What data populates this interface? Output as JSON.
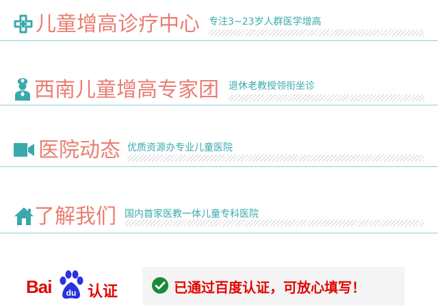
{
  "sections": [
    {
      "title": "儿童增高诊疗中心",
      "subtitle": "专注3~23岁人群医学增高",
      "icon": "medical-cross-icon"
    },
    {
      "title": "西南儿童增高专家团",
      "subtitle": "退休老教授领衔坐诊",
      "icon": "doctor-icon"
    },
    {
      "title": "医院动态",
      "subtitle": "优质资源办专业儿童医院",
      "icon": "video-camera-icon"
    },
    {
      "title": "了解我们",
      "subtitle": "国内首家医教一体儿童专科医院",
      "icon": "home-icon"
    }
  ],
  "certification": {
    "logo_text": "Bai",
    "logo_paw_text": "du",
    "logo_suffix": "认证",
    "message": "已通过百度认证，可放心填写！"
  },
  "colors": {
    "title": "#ea7d72",
    "subtitle": "#3aa9ad",
    "rule": "#8fd0cf",
    "baidu_red": "#e10602",
    "baidu_blue": "#2932e1",
    "check_green": "#1b8a3a"
  }
}
